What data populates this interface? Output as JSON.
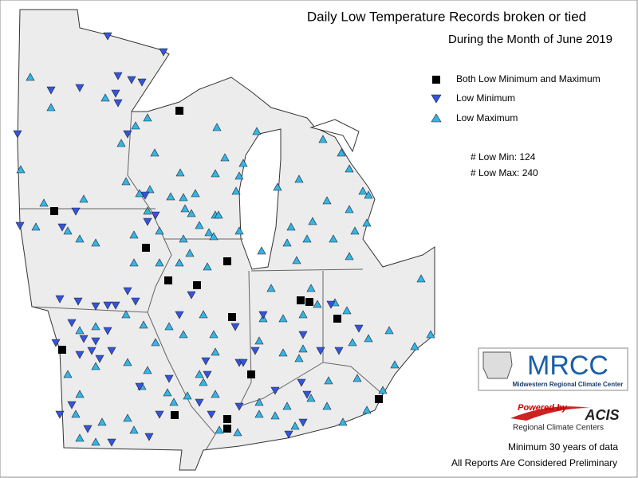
{
  "header": {
    "title": "Daily Low Temperature Records broken or tied",
    "subtitle": "During the Month of June 2019"
  },
  "legend": [
    {
      "label": "Both Low Minimum and Maximum"
    },
    {
      "label": "Low Minimum"
    },
    {
      "label": "Low Maximum"
    }
  ],
  "counts": [
    {
      "label": "# Low Min:",
      "value": 124
    },
    {
      "label": "# Low Max:",
      "value": 240
    }
  ],
  "logo": {
    "name": "MRCC",
    "full_name": "Midwestern Regional Climate Center"
  },
  "acis": {
    "powered": "Powered by",
    "name": "ACIS",
    "sub": "Regional Climate Centers"
  },
  "notes": [
    "Minimum 30 years of data",
    "All Reports Are Considered Preliminary"
  ]
}
